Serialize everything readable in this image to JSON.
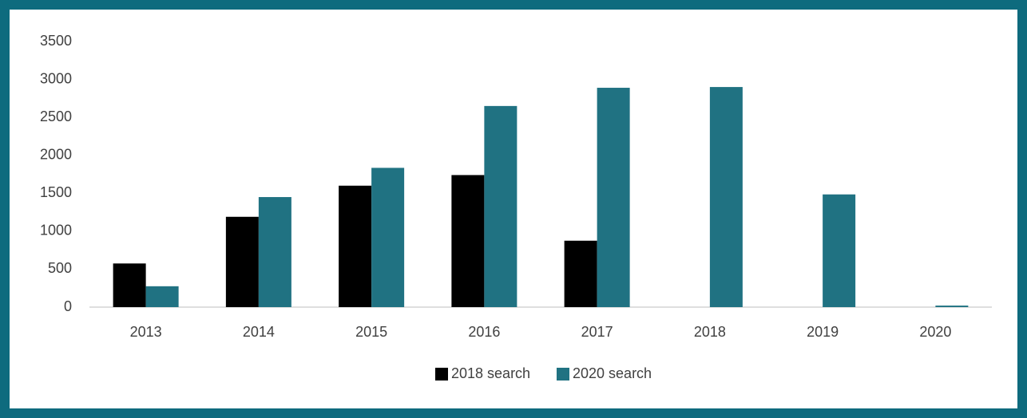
{
  "chart_data": {
    "type": "bar",
    "categories": [
      "2013",
      "2014",
      "2015",
      "2016",
      "2017",
      "2018",
      "2019",
      "2020"
    ],
    "series": [
      {
        "name": "2018 search",
        "color": "#000000",
        "values": [
          575,
          1190,
          1600,
          1740,
          875,
          null,
          null,
          null
        ]
      },
      {
        "name": "2020 search",
        "color": "#207282",
        "values": [
          275,
          1450,
          1835,
          2650,
          2890,
          2900,
          1485,
          20
        ]
      }
    ],
    "ylim": [
      0,
      3500
    ],
    "yticks": [
      0,
      500,
      1000,
      1500,
      2000,
      2500,
      3000,
      3500
    ],
    "legend": "bottom",
    "grid": false
  }
}
